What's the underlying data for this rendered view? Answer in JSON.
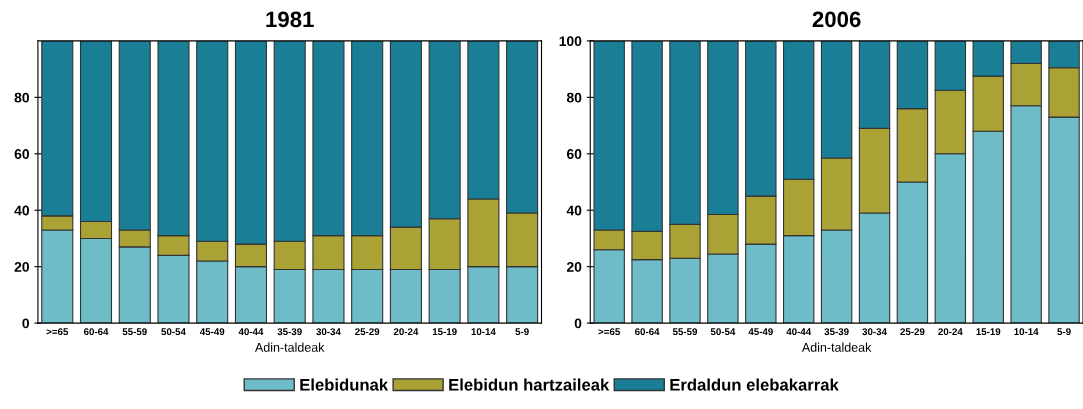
{
  "chart_data": [
    {
      "type": "bar",
      "stacked": true,
      "title": "1981",
      "xlabel": "Adin-taldeak",
      "legend": "bottom",
      "categories": [
        ">=65",
        "60-64",
        "55-59",
        "50-54",
        "45-49",
        "40-44",
        "35-39",
        "30-34",
        "25-29",
        "20-24",
        "15-19",
        "10-14",
        "5-9"
      ],
      "ylim": [
        0,
        100
      ],
      "yticks": [
        0,
        20,
        40,
        60,
        80
      ],
      "series": [
        {
          "name": "Elebidunak",
          "color": "#6fbcc9",
          "values": [
            33,
            30,
            27,
            24,
            22,
            20,
            19,
            19,
            19,
            19,
            19,
            20,
            20
          ]
        },
        {
          "name": "Elebidun hartzaileak",
          "color": "#aaa235",
          "values": [
            5,
            6,
            6,
            7,
            7,
            8,
            10,
            12,
            12,
            15,
            18,
            24,
            19
          ]
        },
        {
          "name": "Erdaldun elebakarrak",
          "color": "#1a7f96",
          "values": [
            62,
            64,
            67,
            69,
            71,
            72,
            71,
            69,
            69,
            66,
            63,
            56,
            61
          ]
        }
      ]
    },
    {
      "type": "bar",
      "stacked": true,
      "title": "2006",
      "xlabel": "Adin-taldeak",
      "categories": [
        ">=65",
        "60-64",
        "55-59",
        "50-54",
        "45-49",
        "40-44",
        "35-39",
        "30-34",
        "25-29",
        "20-24",
        "15-19",
        "10-14",
        "5-9"
      ],
      "ylim": [
        0,
        100
      ],
      "yticks": [
        0,
        20,
        40,
        60,
        80,
        100
      ],
      "series": [
        {
          "color": "#6fbcc9",
          "values": [
            26,
            22.5,
            23,
            24.5,
            28,
            31,
            33,
            39,
            50,
            60,
            68,
            77,
            73
          ]
        },
        {
          "color": "#aaa235",
          "values": [
            7,
            10,
            12,
            14,
            17,
            20,
            25.5,
            30,
            26,
            22.5,
            19.5,
            15,
            17.5
          ]
        },
        {
          "color": "#1a7f96",
          "values": [
            67,
            67.5,
            65,
            61.5,
            55,
            49,
            41.5,
            31,
            24,
            17.5,
            12.5,
            8,
            9.5
          ]
        }
      ]
    }
  ]
}
